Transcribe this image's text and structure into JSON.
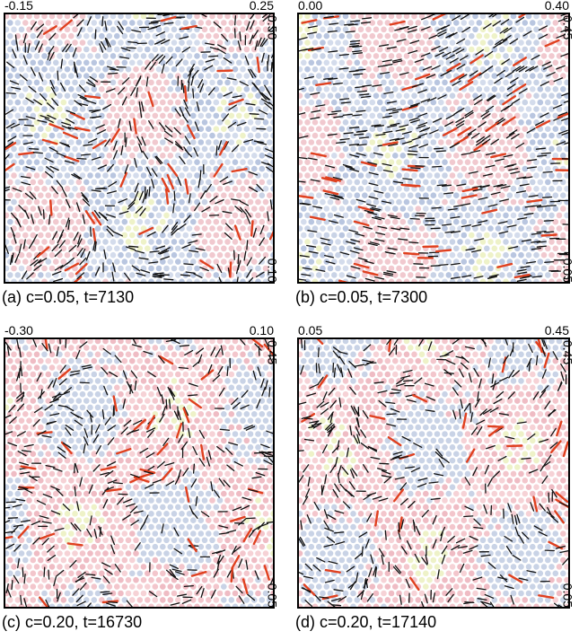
{
  "panels": [
    {
      "caption": "(a) c=0.05, t=7130",
      "x_left": "-0.15",
      "x_right": "0.25",
      "y_top": "0.50",
      "y_bottom": "0.10"
    },
    {
      "caption": "(b) c=0.05, t=7300",
      "x_left": "0.00",
      "x_right": "0.40",
      "y_top": "0.45",
      "y_bottom": "0.05"
    },
    {
      "caption": "(c) c=0.20, t=16730",
      "x_left": "-0.30",
      "x_right": "0.10",
      "y_top": "0.45",
      "y_bottom": "0.05"
    },
    {
      "caption": "(d) c=0.20, t=17140",
      "x_left": "0.05",
      "x_right": "0.45",
      "y_top": "0.45",
      "y_bottom": "0.05"
    }
  ]
}
